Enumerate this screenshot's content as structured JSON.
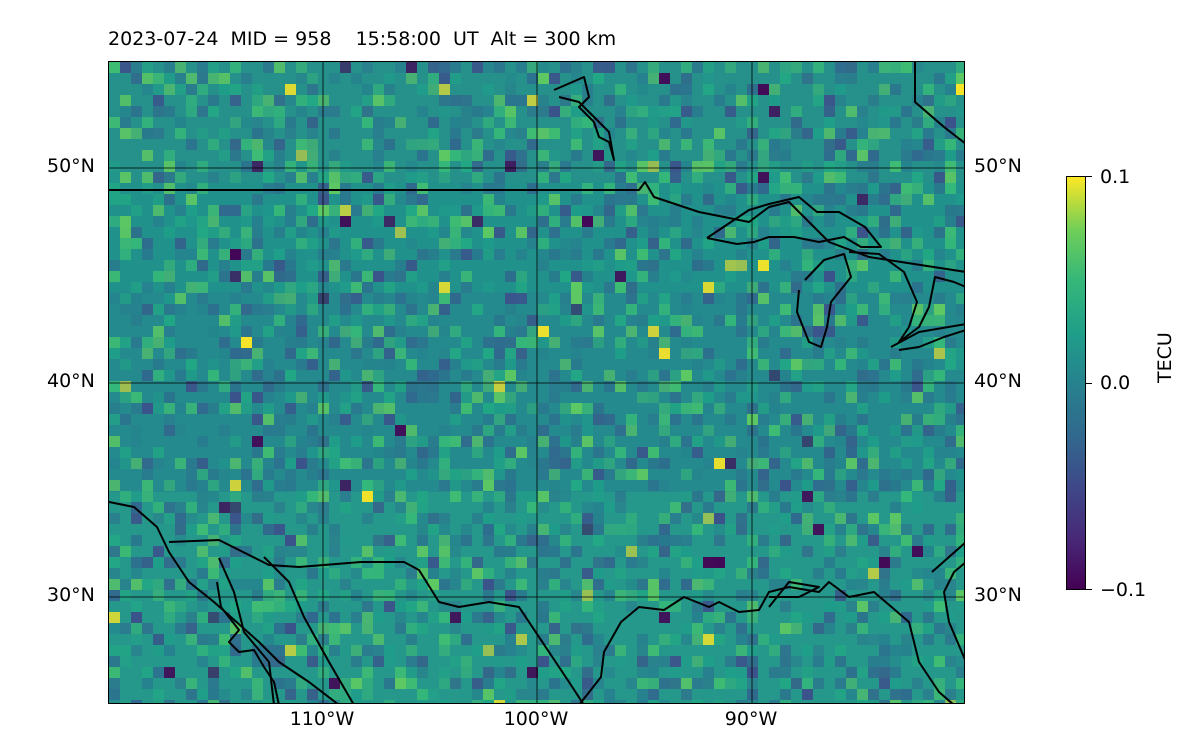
{
  "title": {
    "date": "2023-07-24",
    "mid": "MID = 958",
    "time": "15:58:00",
    "ut": "UT",
    "alt": "Alt = 300 km"
  },
  "map": {
    "lat_labels": [
      "50°N",
      "40°N",
      "30°N"
    ],
    "lon_labels": [
      "110°W",
      "100°W",
      "90°W"
    ]
  },
  "colorbar": {
    "label": "TECU",
    "ticks": [
      "0.1",
      "0.0",
      "−0.1"
    ],
    "colormap": "viridis",
    "range": [
      -0.1,
      0.1
    ]
  },
  "colors": {
    "background_field": "#21918c",
    "coastline": "#000000",
    "gridline": "#000000",
    "high": "#fde725",
    "low": "#440154"
  }
}
